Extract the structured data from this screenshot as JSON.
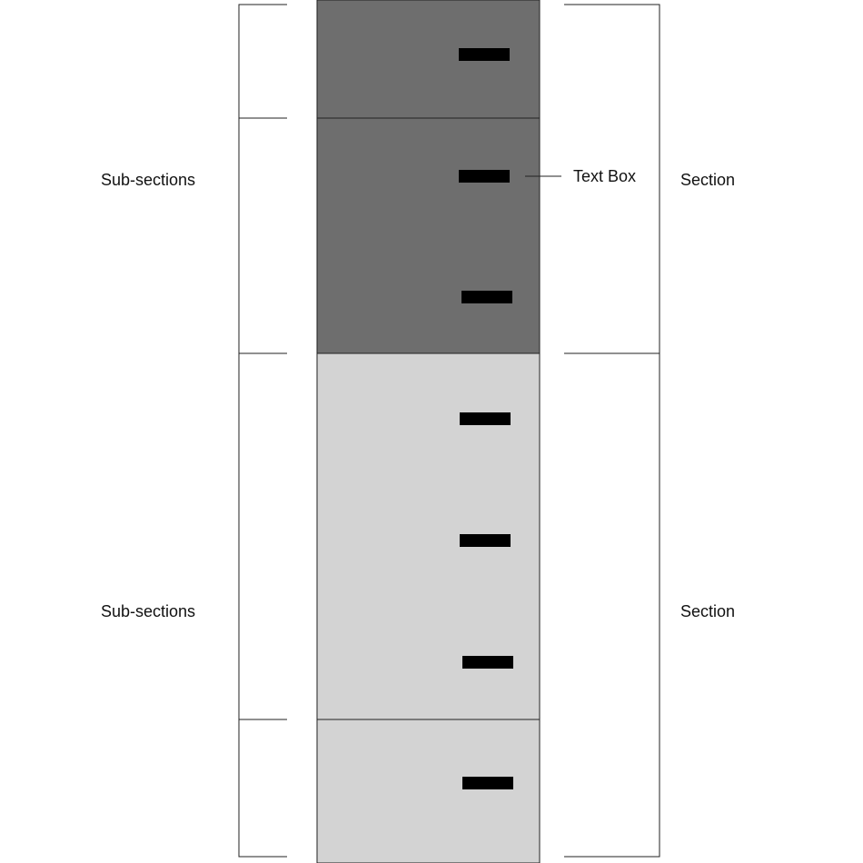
{
  "labels": {
    "subsections_top": "Sub-sections",
    "subsections_bottom": "Sub-sections",
    "section_top": "Section",
    "section_bottom": "Section",
    "text_box": "Text Box"
  },
  "colors": {
    "section_dark": "#6e6e6e",
    "section_light": "#d3d3d3",
    "text_box_marker": "#000000",
    "line": "#222222"
  },
  "sections": [
    {
      "name": "section-1",
      "shade": "dark",
      "subsections": [
        {
          "text_boxes": 1
        },
        {
          "text_boxes": 2
        }
      ]
    },
    {
      "name": "section-2",
      "shade": "light",
      "subsections": [
        {
          "text_boxes": 3
        },
        {
          "text_boxes": 1
        }
      ]
    }
  ]
}
